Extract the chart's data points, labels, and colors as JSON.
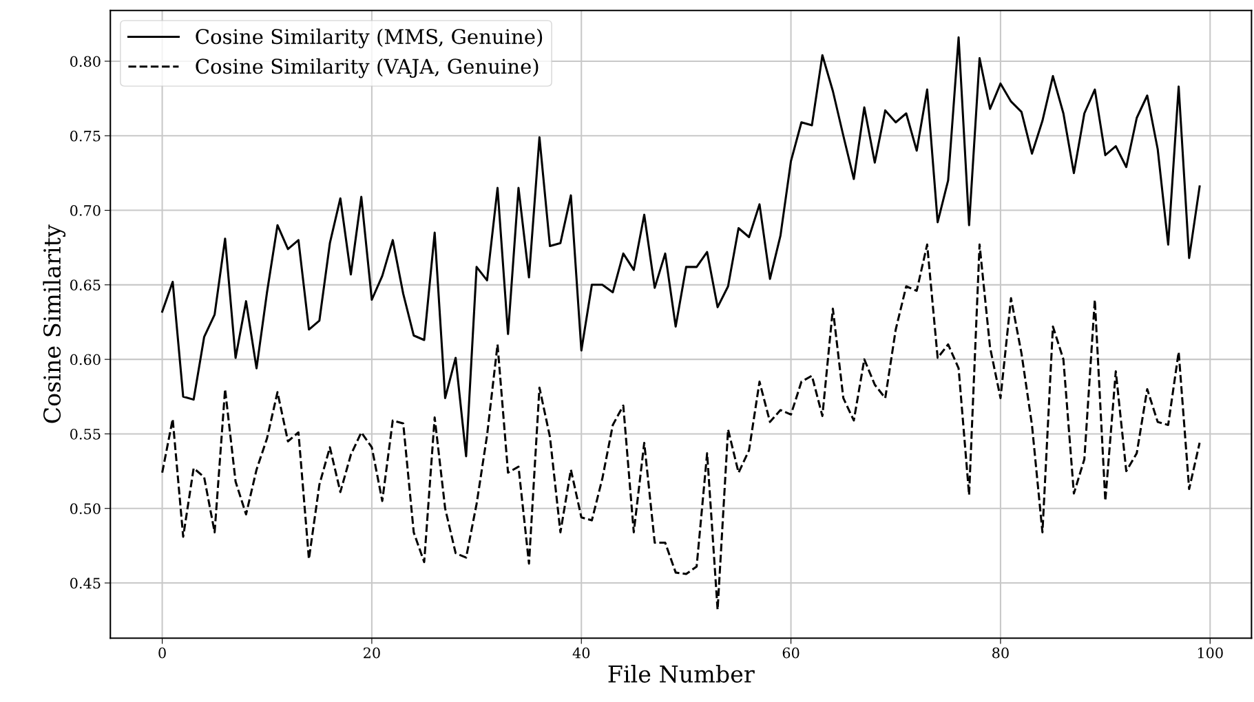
{
  "chart_data": {
    "type": "line",
    "xlabel": "File Number",
    "ylabel": "Cosine Similarity",
    "x": [
      0,
      1,
      2,
      3,
      4,
      5,
      6,
      7,
      8,
      9,
      10,
      11,
      12,
      13,
      14,
      15,
      16,
      17,
      18,
      19,
      20,
      21,
      22,
      23,
      24,
      25,
      26,
      27,
      28,
      29,
      30,
      31,
      32,
      33,
      34,
      35,
      36,
      37,
      38,
      39,
      40,
      41,
      42,
      43,
      44,
      45,
      46,
      47,
      48,
      49,
      50,
      51,
      52,
      53,
      54,
      55,
      56,
      57,
      58,
      59,
      60,
      61,
      62,
      63,
      64,
      65,
      66,
      67,
      68,
      69,
      70,
      71,
      72,
      73,
      74,
      75,
      76,
      77,
      78,
      79,
      80,
      81,
      82,
      83,
      84,
      85,
      86,
      87,
      88,
      89,
      90,
      91,
      92,
      93,
      94,
      95,
      96,
      97,
      98,
      99
    ],
    "series": [
      {
        "name": "Cosine Similarity (MMS, Genuine)",
        "color": "#000000",
        "line_style": "solid",
        "values": [
          0.632,
          0.652,
          0.575,
          0.573,
          0.615,
          0.63,
          0.681,
          0.601,
          0.639,
          0.594,
          0.645,
          0.69,
          0.674,
          0.68,
          0.62,
          0.626,
          0.678,
          0.708,
          0.657,
          0.709,
          0.64,
          0.656,
          0.68,
          0.644,
          0.616,
          0.613,
          0.685,
          0.574,
          0.601,
          0.535,
          0.662,
          0.653,
          0.715,
          0.617,
          0.715,
          0.655,
          0.749,
          0.676,
          0.678,
          0.71,
          0.606,
          0.65,
          0.65,
          0.645,
          0.671,
          0.66,
          0.697,
          0.648,
          0.671,
          0.622,
          0.662,
          0.662,
          0.672,
          0.635,
          0.649,
          0.688,
          0.682,
          0.704,
          0.654,
          0.683,
          0.733,
          0.759,
          0.757,
          0.804,
          0.78,
          0.75,
          0.721,
          0.769,
          0.732,
          0.767,
          0.759,
          0.765,
          0.74,
          0.781,
          0.692,
          0.72,
          0.816,
          0.69,
          0.802,
          0.768,
          0.785,
          0.773,
          0.766,
          0.738,
          0.76,
          0.79,
          0.765,
          0.725,
          0.765,
          0.781,
          0.737,
          0.743,
          0.729,
          0.762,
          0.777,
          0.741,
          0.677,
          0.783,
          0.668,
          0.716
        ]
      },
      {
        "name": "Cosine Similarity (VAJA, Genuine)",
        "color": "#000000",
        "line_style": "dashed",
        "values": [
          0.524,
          0.56,
          0.481,
          0.527,
          0.521,
          0.484,
          0.58,
          0.518,
          0.496,
          0.526,
          0.547,
          0.578,
          0.545,
          0.551,
          0.466,
          0.516,
          0.541,
          0.511,
          0.536,
          0.551,
          0.541,
          0.505,
          0.559,
          0.557,
          0.484,
          0.464,
          0.561,
          0.5,
          0.47,
          0.467,
          0.503,
          0.549,
          0.61,
          0.524,
          0.528,
          0.463,
          0.581,
          0.548,
          0.484,
          0.526,
          0.494,
          0.492,
          0.52,
          0.556,
          0.569,
          0.484,
          0.544,
          0.477,
          0.477,
          0.457,
          0.456,
          0.461,
          0.537,
          0.432,
          0.553,
          0.524,
          0.539,
          0.585,
          0.558,
          0.566,
          0.563,
          0.585,
          0.589,
          0.562,
          0.634,
          0.574,
          0.559,
          0.6,
          0.583,
          0.574,
          0.62,
          0.649,
          0.646,
          0.677,
          0.601,
          0.61,
          0.594,
          0.509,
          0.677,
          0.608,
          0.574,
          0.641,
          0.604,
          0.556,
          0.484,
          0.622,
          0.6,
          0.51,
          0.533,
          0.64,
          0.505,
          0.592,
          0.525,
          0.537,
          0.58,
          0.558,
          0.556,
          0.605,
          0.513,
          0.544
        ]
      }
    ],
    "xlim": [
      -4.95,
      103.95
    ],
    "xticks": [
      0,
      20,
      40,
      60,
      80,
      100
    ],
    "ylim": [
      0.413,
      0.834
    ],
    "yticks": [
      {
        "value": 0.45,
        "label": "0.45"
      },
      {
        "value": 0.5,
        "label": "0.50"
      },
      {
        "value": 0.55,
        "label": "0.55"
      },
      {
        "value": 0.6,
        "label": "0.60"
      },
      {
        "value": 0.65,
        "label": "0.65"
      },
      {
        "value": 0.7,
        "label": "0.70"
      },
      {
        "value": 0.75,
        "label": "0.75"
      },
      {
        "value": 0.8,
        "label": "0.80"
      }
    ],
    "grid": true,
    "legend": "top left"
  }
}
